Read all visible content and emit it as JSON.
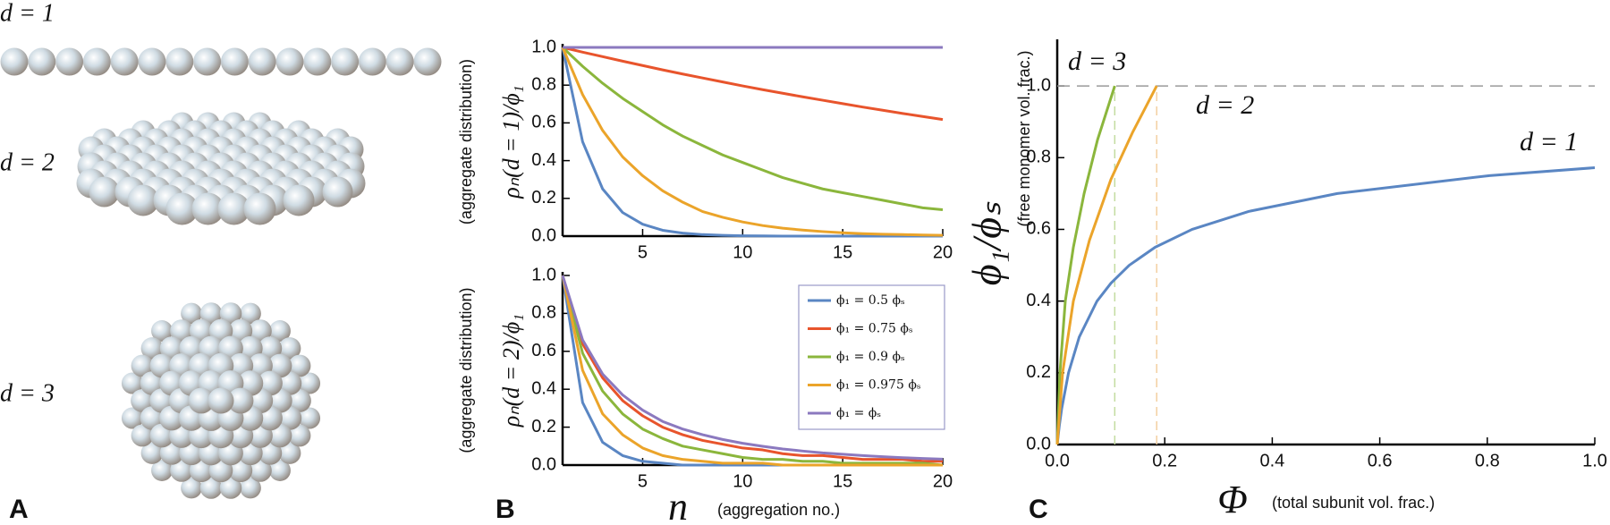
{
  "panel_a": {
    "label": "A",
    "annotations": [
      "d = 1",
      "d = 2",
      "d = 3"
    ]
  },
  "chart_data": [
    {
      "type": "line",
      "ylabel": "ρₙ(d = 1)/ϕ₁",
      "ylabel_note": "(aggregate distribution)",
      "x": [
        1,
        2,
        3,
        4,
        5,
        6,
        7,
        8,
        9,
        10,
        11,
        12,
        13,
        14,
        15,
        16,
        17,
        18,
        19,
        20
      ],
      "xlim": [
        1,
        20
      ],
      "xticks": [
        5,
        10,
        15,
        20
      ],
      "ylim": [
        0,
        1
      ],
      "yticks": [
        {
          "value": 0,
          "label": "0.0"
        },
        {
          "value": 0.2,
          "label": "0.2"
        },
        {
          "value": 0.4,
          "label": "0.4"
        },
        {
          "value": 0.6,
          "label": "0.6"
        },
        {
          "value": 0.8,
          "label": "0.8"
        },
        {
          "value": 1,
          "label": "1.0"
        }
      ],
      "series": [
        {
          "color": "#5a86c3",
          "values": [
            1,
            0.5,
            0.25,
            0.125,
            0.063,
            0.031,
            0.016,
            0.008,
            0.004,
            0.002,
            0.001,
            0,
            0,
            0,
            0,
            0,
            0,
            0,
            0,
            0
          ]
        },
        {
          "color": "#e8542c",
          "values": [
            1,
            0.975,
            0.951,
            0.927,
            0.904,
            0.881,
            0.859,
            0.838,
            0.817,
            0.796,
            0.776,
            0.757,
            0.738,
            0.72,
            0.702,
            0.684,
            0.667,
            0.65,
            0.634,
            0.618
          ]
        },
        {
          "color": "#8bb63c",
          "values": [
            1,
            0.9,
            0.81,
            0.73,
            0.66,
            0.59,
            0.53,
            0.48,
            0.43,
            0.39,
            0.35,
            0.31,
            0.28,
            0.25,
            0.23,
            0.21,
            0.19,
            0.17,
            0.15,
            0.14
          ]
        },
        {
          "color": "#eba42a",
          "values": [
            1,
            0.75,
            0.56,
            0.42,
            0.32,
            0.24,
            0.18,
            0.13,
            0.1,
            0.075,
            0.056,
            0.042,
            0.032,
            0.024,
            0.018,
            0.013,
            0.01,
            0.008,
            0.006,
            0.004
          ]
        },
        {
          "color": "#8b79bf",
          "values": [
            1,
            1,
            1,
            1,
            1,
            1,
            1,
            1,
            1,
            1,
            1,
            1,
            1,
            1,
            1,
            1,
            1,
            1,
            1,
            1
          ]
        }
      ]
    },
    {
      "type": "line",
      "panel_label": "B",
      "ylabel": "ρₙ(d = 2)/ϕ₁",
      "ylabel_note": "(aggregate distribution)",
      "xlabel": "n",
      "xlabel_note": "(aggregation no.)",
      "legend": "upper right",
      "x": [
        1,
        2,
        3,
        4,
        5,
        6,
        7,
        8,
        9,
        10,
        11,
        12,
        13,
        14,
        15,
        16,
        17,
        18,
        19,
        20
      ],
      "xlim": [
        1,
        20
      ],
      "xticks": [
        5,
        10,
        15,
        20
      ],
      "ylim": [
        0,
        1
      ],
      "yticks": [
        {
          "value": 0,
          "label": "0.0"
        },
        {
          "value": 0.2,
          "label": "0.2"
        },
        {
          "value": 0.4,
          "label": "0.4"
        },
        {
          "value": 0.6,
          "label": "0.6"
        },
        {
          "value": 0.8,
          "label": "0.8"
        },
        {
          "value": 1,
          "label": "1.0"
        }
      ],
      "series": [
        {
          "name": "ϕ₁ = 0.5 ϕₛ",
          "color": "#5a86c3",
          "values": [
            1,
            0.33,
            0.12,
            0.05,
            0.02,
            0.01,
            0,
            0,
            0,
            0,
            0,
            0,
            0,
            0,
            0,
            0,
            0,
            0,
            0,
            0
          ]
        },
        {
          "name": "ϕ₁ = 0.75 ϕₛ",
          "color": "#e8542c",
          "values": [
            1,
            0.64,
            0.46,
            0.34,
            0.26,
            0.2,
            0.16,
            0.13,
            0.11,
            0.09,
            0.08,
            0.06,
            0.05,
            0.05,
            0.04,
            0.03,
            0.03,
            0.03,
            0.02,
            0.02
          ]
        },
        {
          "name": "ϕ₁ = 0.9 ϕₛ",
          "color": "#8bb63c",
          "values": [
            1,
            0.59,
            0.39,
            0.27,
            0.19,
            0.14,
            0.1,
            0.08,
            0.06,
            0.04,
            0.03,
            0.03,
            0.02,
            0.02,
            0.01,
            0.01,
            0.01,
            0.01,
            0.01,
            0
          ]
        },
        {
          "name": "ϕ₁ = 0.975 ϕₛ",
          "color": "#eba42a",
          "values": [
            1,
            0.5,
            0.27,
            0.16,
            0.09,
            0.05,
            0.03,
            0.02,
            0.01,
            0.01,
            0.01,
            0,
            0,
            0,
            0,
            0,
            0,
            0,
            0,
            0
          ]
        },
        {
          "name": "ϕ₁ = ϕₛ",
          "color": "#8b79bf",
          "values": [
            1,
            0.66,
            0.48,
            0.37,
            0.29,
            0.23,
            0.19,
            0.16,
            0.135,
            0.115,
            0.099,
            0.085,
            0.074,
            0.064,
            0.057,
            0.05,
            0.044,
            0.039,
            0.035,
            0.031
          ]
        }
      ]
    },
    {
      "type": "line",
      "panel_label": "C",
      "xlabel": "Φ",
      "xlabel_note": "(total subunit vol. frac.)",
      "ylabel": "ϕ₁/ϕₛ",
      "ylabel_note": "(free monomer vol. frac.)",
      "xlim": [
        0,
        1
      ],
      "xticks": [
        {
          "value": 0,
          "label": "0.0"
        },
        0.2,
        0.4,
        0.6,
        0.8,
        {
          "value": 1,
          "label": "1.0"
        }
      ],
      "ylim": [
        0,
        1.12
      ],
      "yticks": [
        {
          "value": 0,
          "label": "0.0"
        },
        0.2,
        0.4,
        0.6,
        0.8,
        {
          "value": 1,
          "label": "1.0"
        }
      ],
      "annotations": [
        "d = 3",
        "d = 2",
        "d = 1"
      ],
      "hlines": [
        {
          "value": 1,
          "color": "#9a9a9a"
        }
      ],
      "vlines": [
        {
          "value": 0.107,
          "color": "#c3dca0"
        },
        {
          "value": 0.185,
          "color": "#f3cfa0"
        }
      ],
      "series": [
        {
          "color": "#5a86c3",
          "x": [
            0,
            0.0037,
            0.0083,
            0.021,
            0.041,
            0.074,
            0.1,
            0.134,
            0.182,
            0.251,
            0.356,
            0.521,
            0.804,
            1.0
          ],
          "values": [
            0,
            0.05,
            0.1,
            0.2,
            0.3,
            0.4,
            0.45,
            0.5,
            0.55,
            0.6,
            0.65,
            0.7,
            0.75,
            0.772
          ]
        },
        {
          "color": "#8bb63c",
          "x": [
            0,
            0.005,
            0.015,
            0.03,
            0.05,
            0.075,
            0.107
          ],
          "values": [
            0,
            0.2,
            0.4,
            0.55,
            0.7,
            0.85,
            1.0
          ]
        },
        {
          "color": "#eba42a",
          "x": [
            0,
            0.01,
            0.03,
            0.06,
            0.1,
            0.14,
            0.185
          ],
          "values": [
            0,
            0.2,
            0.4,
            0.57,
            0.74,
            0.87,
            1.0
          ]
        }
      ]
    }
  ]
}
